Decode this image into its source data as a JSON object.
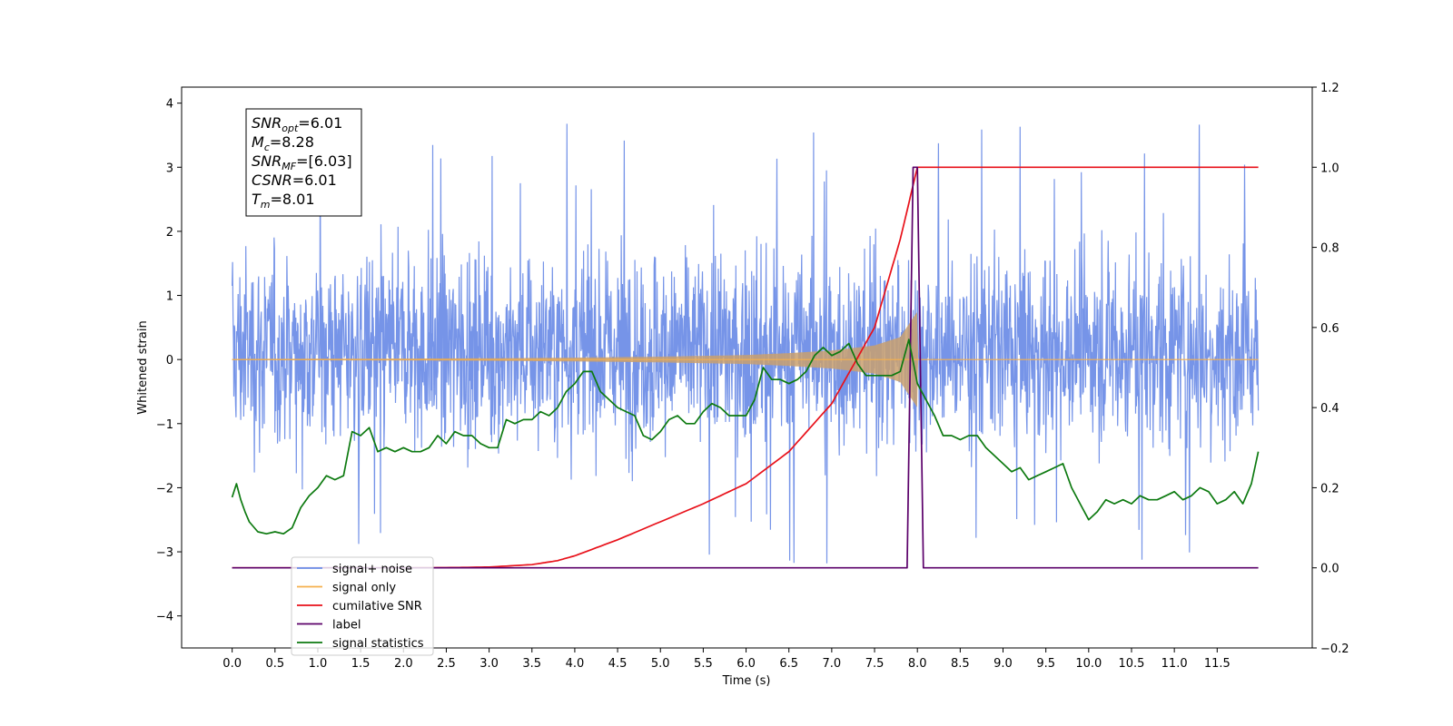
{
  "chart_data": {
    "type": "line",
    "xlabel": "Time (s)",
    "ylabel_left": "Whitened strain",
    "ylabel_right": "",
    "xlim": [
      -0.59,
      12.61
    ],
    "ylim_left": [
      -4.5,
      4.25
    ],
    "ylim_right": [
      -0.2,
      1.2
    ],
    "x_ticks": [
      "0.0",
      "0.5",
      "1.0",
      "1.5",
      "2.0",
      "2.5",
      "3.0",
      "3.5",
      "4.0",
      "4.5",
      "5.0",
      "5.5",
      "6.0",
      "6.5",
      "7.0",
      "7.5",
      "8.0",
      "8.5",
      "9.0",
      "9.5",
      "10.0",
      "10.5",
      "11.0",
      "11.5"
    ],
    "x_tick_values": [
      0,
      0.5,
      1,
      1.5,
      2,
      2.5,
      3,
      3.5,
      4,
      4.5,
      5,
      5.5,
      6,
      6.5,
      7,
      7.5,
      8,
      8.5,
      9,
      9.5,
      10,
      10.5,
      11,
      11.5
    ],
    "y_ticks_left": [
      "−4",
      "−3",
      "−2",
      "−1",
      "0",
      "1",
      "2",
      "3",
      "4"
    ],
    "y_tick_values_left": [
      -4,
      -3,
      -2,
      -1,
      0,
      1,
      2,
      3,
      4
    ],
    "y_ticks_right": [
      "−0.2",
      "0.0",
      "0.2",
      "0.4",
      "0.6",
      "0.8",
      "1.0",
      "1.2"
    ],
    "y_tick_values_right": [
      -0.2,
      0,
      0.2,
      0.4,
      0.6,
      0.8,
      1.0,
      1.2
    ],
    "legend_position": "lower-left",
    "info_box": {
      "lines": [
        {
          "main": "SNR",
          "sub": "opt",
          "value": "=6.01"
        },
        {
          "main": "M",
          "sub": "c",
          "value": "=8.28"
        },
        {
          "main": "SNR",
          "sub": "MF",
          "value": "=[6.03]"
        },
        {
          "main": "CSNR",
          "sub": "",
          "value": "=6.01"
        },
        {
          "main": "T",
          "sub": "m",
          "value": "=8.01"
        }
      ]
    },
    "series": [
      {
        "name": "signal+ noise",
        "color": "#6a8be6",
        "axis": "left",
        "description_values": {
          "x_start": 0.0,
          "x_end": 11.98,
          "typical_band": [
            -1.9,
            2.2
          ],
          "max": 3.85,
          "min": -4.1
        }
      },
      {
        "name": "signal only",
        "color": "#f5b04d",
        "axis": "left",
        "envelope": {
          "x": [
            0,
            1,
            2,
            3,
            4,
            5,
            6,
            6.5,
            7,
            7.5,
            7.8,
            8.0,
            8.01,
            11.98
          ],
          "amp": [
            0.01,
            0.012,
            0.015,
            0.02,
            0.03,
            0.045,
            0.07,
            0.1,
            0.14,
            0.22,
            0.35,
            0.75,
            0.0,
            0.0
          ]
        }
      },
      {
        "name": "cumilative SNR",
        "color": "#e8111a",
        "axis": "right",
        "x": [
          0,
          1,
          2,
          2.5,
          3,
          3.5,
          3.8,
          4.0,
          4.5,
          5.0,
          5.5,
          6.0,
          6.5,
          7.0,
          7.5,
          7.8,
          8.0,
          8.01,
          11.98
        ],
        "y": [
          0,
          0,
          0,
          0.0005,
          0.002,
          0.008,
          0.018,
          0.03,
          0.07,
          0.115,
          0.16,
          0.21,
          0.29,
          0.41,
          0.6,
          0.82,
          1.0,
          1.0,
          1.0
        ]
      },
      {
        "name": "label",
        "color": "#5b006a",
        "axis": "right",
        "x": [
          0,
          7.88,
          7.95,
          8.0,
          8.07,
          11.98
        ],
        "y": [
          0,
          0,
          1,
          1,
          0,
          0
        ]
      },
      {
        "name": "signal statistics",
        "color": "#0d7a10",
        "axis": "right",
        "x": [
          0,
          0.05,
          0.1,
          0.15,
          0.2,
          0.3,
          0.4,
          0.5,
          0.6,
          0.7,
          0.8,
          0.9,
          1.0,
          1.1,
          1.2,
          1.3,
          1.4,
          1.5,
          1.6,
          1.7,
          1.8,
          1.9,
          2.0,
          2.1,
          2.2,
          2.3,
          2.4,
          2.5,
          2.6,
          2.7,
          2.8,
          2.9,
          3.0,
          3.1,
          3.2,
          3.3,
          3.4,
          3.5,
          3.6,
          3.7,
          3.8,
          3.9,
          4.0,
          4.1,
          4.2,
          4.3,
          4.4,
          4.5,
          4.6,
          4.7,
          4.8,
          4.9,
          5.0,
          5.1,
          5.2,
          5.3,
          5.4,
          5.5,
          5.6,
          5.7,
          5.8,
          5.9,
          6.0,
          6.1,
          6.2,
          6.3,
          6.4,
          6.5,
          6.6,
          6.7,
          6.8,
          6.9,
          7.0,
          7.1,
          7.2,
          7.3,
          7.4,
          7.5,
          7.6,
          7.7,
          7.8,
          7.9,
          8.0,
          8.1,
          8.2,
          8.3,
          8.4,
          8.5,
          8.6,
          8.7,
          8.8,
          8.9,
          9.0,
          9.1,
          9.2,
          9.3,
          9.4,
          9.5,
          9.6,
          9.7,
          9.8,
          9.9,
          10.0,
          10.1,
          10.2,
          10.3,
          10.4,
          10.5,
          10.6,
          10.7,
          10.8,
          10.9,
          11.0,
          11.1,
          11.2,
          11.3,
          11.4,
          11.5,
          11.6,
          11.7,
          11.8,
          11.9,
          11.98
        ],
        "y": [
          0.176,
          0.21,
          0.17,
          0.14,
          0.115,
          0.09,
          0.085,
          0.09,
          0.085,
          0.1,
          0.15,
          0.18,
          0.2,
          0.23,
          0.22,
          0.23,
          0.34,
          0.33,
          0.35,
          0.29,
          0.3,
          0.29,
          0.3,
          0.29,
          0.29,
          0.3,
          0.33,
          0.31,
          0.34,
          0.33,
          0.33,
          0.31,
          0.3,
          0.3,
          0.37,
          0.36,
          0.37,
          0.37,
          0.39,
          0.38,
          0.4,
          0.44,
          0.46,
          0.49,
          0.49,
          0.44,
          0.42,
          0.4,
          0.39,
          0.38,
          0.33,
          0.32,
          0.34,
          0.37,
          0.38,
          0.36,
          0.36,
          0.39,
          0.41,
          0.4,
          0.38,
          0.38,
          0.38,
          0.42,
          0.5,
          0.47,
          0.47,
          0.46,
          0.47,
          0.49,
          0.53,
          0.55,
          0.53,
          0.54,
          0.56,
          0.51,
          0.48,
          0.48,
          0.48,
          0.48,
          0.49,
          0.57,
          0.46,
          0.42,
          0.38,
          0.33,
          0.33,
          0.32,
          0.33,
          0.33,
          0.3,
          0.28,
          0.26,
          0.24,
          0.25,
          0.22,
          0.23,
          0.24,
          0.25,
          0.26,
          0.2,
          0.16,
          0.12,
          0.14,
          0.17,
          0.16,
          0.17,
          0.16,
          0.18,
          0.17,
          0.17,
          0.18,
          0.19,
          0.17,
          0.18,
          0.2,
          0.19,
          0.16,
          0.17,
          0.19,
          0.16,
          0.21,
          0.29
        ]
      }
    ]
  }
}
